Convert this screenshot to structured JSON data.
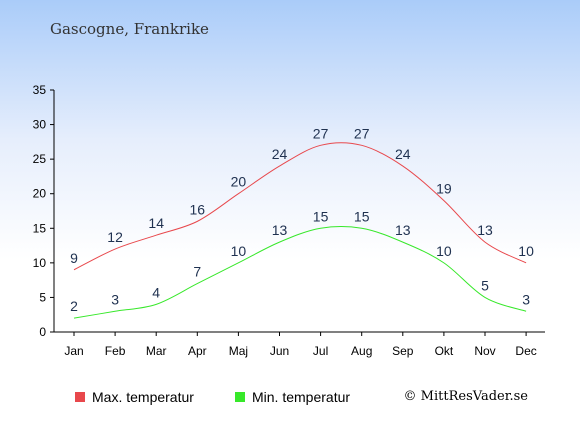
{
  "chart_data": {
    "type": "line",
    "subtitle": "Gascogne, Frankrike",
    "categories": [
      "Jan",
      "Feb",
      "Mar",
      "Apr",
      "Maj",
      "Jun",
      "Jul",
      "Aug",
      "Sep",
      "Okt",
      "Nov",
      "Dec"
    ],
    "ylim": [
      0,
      35
    ],
    "yticks": [
      0,
      5,
      10,
      15,
      20,
      25,
      30,
      35
    ],
    "grid": false,
    "legend_position": "bottom-left",
    "series": [
      {
        "name": "Max. temperatur",
        "color": "#e8484c",
        "values": [
          9,
          12,
          14,
          16,
          20,
          24,
          27,
          27,
          24,
          19,
          13,
          10
        ]
      },
      {
        "name": "Min. temperatur",
        "color": "#37e82a",
        "values": [
          2,
          3,
          4,
          7,
          10,
          13,
          15,
          15,
          13,
          10,
          5,
          3
        ]
      }
    ]
  },
  "copyright": "© MittResVader.se"
}
